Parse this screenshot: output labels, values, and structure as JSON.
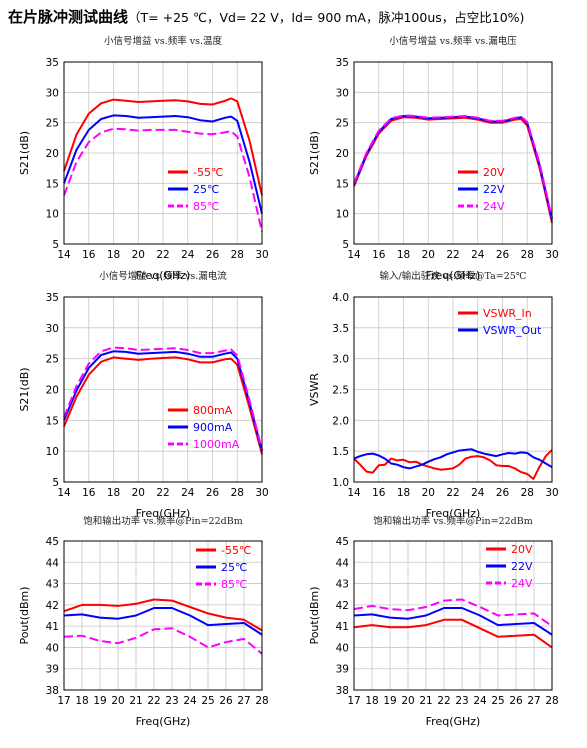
{
  "header": {
    "title": "在片脉冲测试曲线",
    "conditions": "（T= +25 ℃，Vd= 22 V，Id= 900 mA，脉冲100us，占空比10%)"
  },
  "chart_data": [
    {
      "type": "line",
      "title": "小信号增益 vs.频率 vs.温度",
      "xlabel": "Freq(GHz)",
      "ylabel": "S21(dB)",
      "xlim": [
        14,
        30
      ],
      "ylim": [
        5,
        35
      ],
      "xticks": [
        14,
        16,
        18,
        20,
        22,
        24,
        26,
        28,
        30
      ],
      "yticks": [
        5,
        10,
        15,
        20,
        25,
        30,
        35
      ],
      "grid": true,
      "legend_position": "bottom-center",
      "series": [
        {
          "name": "-55℃",
          "color": "#ff0000",
          "dash": "solid",
          "x": [
            14,
            15,
            16,
            17,
            18,
            19,
            20,
            21,
            22,
            23,
            24,
            25,
            26,
            27,
            27.5,
            28,
            29,
            30
          ],
          "y": [
            17,
            23,
            26.5,
            28.2,
            28.8,
            28.6,
            28.4,
            28.5,
            28.6,
            28.7,
            28.5,
            28.1,
            28.0,
            28.6,
            29.0,
            28.5,
            22,
            13
          ]
        },
        {
          "name": "25℃",
          "color": "#0000ff",
          "dash": "solid",
          "x": [
            14,
            15,
            16,
            17,
            18,
            19,
            20,
            21,
            22,
            23,
            24,
            25,
            26,
            27,
            27.5,
            28,
            29,
            30
          ],
          "y": [
            15,
            20.5,
            23.8,
            25.6,
            26.2,
            26.1,
            25.8,
            25.9,
            26.0,
            26.1,
            25.9,
            25.4,
            25.2,
            25.8,
            26.0,
            25.3,
            18.5,
            10
          ]
        },
        {
          "name": "85℃",
          "color": "#ff00ff",
          "dash": "dash",
          "x": [
            14,
            15,
            16,
            17,
            18,
            19,
            20,
            21,
            22,
            23,
            24,
            25,
            26,
            27,
            27.5,
            28,
            29,
            30
          ],
          "y": [
            13,
            18.5,
            21.8,
            23.4,
            24.0,
            23.9,
            23.7,
            23.8,
            23.8,
            23.8,
            23.5,
            23.2,
            23.1,
            23.4,
            23.6,
            22.7,
            16,
            7
          ]
        }
      ]
    },
    {
      "type": "line",
      "title": "小信号增益 vs.频率 vs.漏电压",
      "xlabel": "Freq(GHz)",
      "ylabel": "S21(dB)",
      "xlim": [
        14,
        30
      ],
      "ylim": [
        5,
        35
      ],
      "xticks": [
        14,
        16,
        18,
        20,
        22,
        24,
        26,
        28,
        30
      ],
      "yticks": [
        5,
        10,
        15,
        20,
        25,
        30,
        35
      ],
      "grid": true,
      "legend_position": "bottom-center",
      "series": [
        {
          "name": "20V",
          "color": "#ff0000",
          "dash": "solid",
          "x": [
            14,
            15,
            16,
            17,
            18,
            19,
            20,
            21,
            22,
            23,
            24,
            25,
            26,
            27,
            27.5,
            28,
            29,
            30
          ],
          "y": [
            14.5,
            19.5,
            23.2,
            25.3,
            25.9,
            25.8,
            25.5,
            25.6,
            25.7,
            25.8,
            25.5,
            25.0,
            25.0,
            25.5,
            25.6,
            24.5,
            17.5,
            8.5
          ]
        },
        {
          "name": "22V",
          "color": "#0000ff",
          "dash": "solid",
          "x": [
            14,
            15,
            16,
            17,
            18,
            19,
            20,
            21,
            22,
            23,
            24,
            25,
            26,
            27,
            27.5,
            28,
            29,
            30
          ],
          "y": [
            14.8,
            19.8,
            23.5,
            25.6,
            26.1,
            26.0,
            25.7,
            25.8,
            25.9,
            26.0,
            25.7,
            25.2,
            25.2,
            25.7,
            25.9,
            24.9,
            18,
            9
          ]
        },
        {
          "name": "24V",
          "color": "#ff00ff",
          "dash": "dash",
          "x": [
            14,
            15,
            16,
            17,
            18,
            19,
            20,
            21,
            22,
            23,
            24,
            25,
            26,
            27,
            27.5,
            28,
            29,
            30
          ],
          "y": [
            15,
            20,
            23.7,
            25.7,
            26.2,
            26.1,
            25.8,
            25.9,
            26.0,
            26.1,
            25.8,
            25.3,
            25.3,
            25.8,
            26.0,
            25.1,
            18.3,
            9.3
          ]
        }
      ]
    },
    {
      "type": "line",
      "title": "小信号增益 vs.频率 vs.漏电流",
      "xlabel": "Freq(GHz)",
      "ylabel": "S21(dB)",
      "xlim": [
        14,
        30
      ],
      "ylim": [
        5,
        35
      ],
      "xticks": [
        14,
        16,
        18,
        20,
        22,
        24,
        26,
        28,
        30
      ],
      "yticks": [
        5,
        10,
        15,
        20,
        25,
        30,
        35
      ],
      "grid": true,
      "legend_position": "bottom-center",
      "series": [
        {
          "name": "800mA",
          "color": "#ff0000",
          "dash": "solid",
          "x": [
            14,
            15,
            16,
            17,
            18,
            19,
            20,
            21,
            22,
            23,
            24,
            25,
            26,
            27,
            27.5,
            28,
            29,
            30
          ],
          "y": [
            14,
            18.8,
            22.4,
            24.5,
            25.2,
            25.0,
            24.8,
            25.0,
            25.1,
            25.2,
            24.9,
            24.4,
            24.4,
            24.9,
            25.0,
            24.0,
            17,
            9.5
          ]
        },
        {
          "name": "900mA",
          "color": "#0000ff",
          "dash": "solid",
          "x": [
            14,
            15,
            16,
            17,
            18,
            19,
            20,
            21,
            22,
            23,
            24,
            25,
            26,
            27,
            27.5,
            28,
            29,
            30
          ],
          "y": [
            15,
            19.8,
            23.5,
            25.6,
            26.2,
            26.1,
            25.8,
            25.9,
            26.0,
            26.1,
            25.8,
            25.3,
            25.3,
            25.8,
            26.0,
            25.0,
            17.8,
            10
          ]
        },
        {
          "name": "1000mA",
          "color": "#ff00ff",
          "dash": "dash",
          "x": [
            14,
            15,
            16,
            17,
            18,
            19,
            20,
            21,
            22,
            23,
            24,
            25,
            26,
            27,
            27.5,
            28,
            29,
            30
          ],
          "y": [
            15.5,
            20.5,
            24.2,
            26.2,
            26.8,
            26.7,
            26.4,
            26.5,
            26.6,
            26.7,
            26.4,
            25.9,
            25.9,
            26.3,
            26.5,
            25.5,
            18.2,
            10.2
          ]
        }
      ]
    },
    {
      "type": "line",
      "title": "输入/输出驻波 vs.频率@Ta=25℃",
      "xlabel": "Freq(GHz)",
      "ylabel": "VSWR",
      "xlim": [
        14,
        30
      ],
      "ylim": [
        1.0,
        4.0
      ],
      "xticks": [
        14,
        16,
        18,
        20,
        22,
        24,
        26,
        28,
        30
      ],
      "yticks": [
        1.0,
        1.5,
        2.0,
        2.5,
        3.0,
        3.5,
        4.0
      ],
      "grid": true,
      "legend_position": "top-right",
      "series": [
        {
          "name": "VSWR_In",
          "color": "#ff0000",
          "dash": "solid",
          "x": [
            14,
            14.5,
            15,
            15.5,
            16,
            16.5,
            17,
            17.5,
            18,
            18.5,
            19,
            19.5,
            20,
            20.5,
            21,
            21.5,
            22,
            22.5,
            23,
            23.5,
            24,
            24.5,
            25,
            25.5,
            26,
            26.5,
            27,
            27.5,
            28,
            28.5,
            29,
            29.5,
            30
          ],
          "y": [
            1.38,
            1.28,
            1.17,
            1.15,
            1.27,
            1.28,
            1.38,
            1.35,
            1.36,
            1.32,
            1.33,
            1.28,
            1.25,
            1.22,
            1.2,
            1.21,
            1.22,
            1.28,
            1.38,
            1.41,
            1.42,
            1.4,
            1.35,
            1.27,
            1.26,
            1.26,
            1.22,
            1.16,
            1.13,
            1.05,
            1.25,
            1.42,
            1.52
          ]
        },
        {
          "name": "VSWR_Out",
          "color": "#0000ff",
          "dash": "solid",
          "x": [
            14,
            14.5,
            15,
            15.5,
            16,
            16.5,
            17,
            17.5,
            18,
            18.5,
            19,
            19.5,
            20,
            20.5,
            21,
            21.5,
            22,
            22.5,
            23,
            23.5,
            24,
            24.5,
            25,
            25.5,
            26,
            26.5,
            27,
            27.5,
            28,
            28.5,
            29,
            29.5,
            30
          ],
          "y": [
            1.38,
            1.42,
            1.45,
            1.46,
            1.43,
            1.38,
            1.3,
            1.28,
            1.24,
            1.22,
            1.25,
            1.28,
            1.33,
            1.37,
            1.4,
            1.45,
            1.48,
            1.51,
            1.52,
            1.53,
            1.49,
            1.46,
            1.44,
            1.42,
            1.45,
            1.47,
            1.46,
            1.48,
            1.47,
            1.4,
            1.36,
            1.3,
            1.24
          ]
        }
      ]
    },
    {
      "type": "line",
      "title": "饱和输出功率 vs.频率@Pin=22dBm",
      "xlabel": "Freq(GHz)",
      "ylabel": "Pout(dBm)",
      "xlim": [
        17,
        28
      ],
      "ylim": [
        38,
        45
      ],
      "xticks": [
        17,
        18,
        19,
        20,
        21,
        22,
        23,
        24,
        25,
        26,
        27,
        28
      ],
      "yticks": [
        38,
        39,
        40,
        41,
        42,
        43,
        44,
        45
      ],
      "grid": true,
      "legend_position": "top-right",
      "series": [
        {
          "name": "-55℃",
          "color": "#ff0000",
          "dash": "solid",
          "x": [
            17,
            18,
            19,
            20,
            21,
            22,
            23,
            24,
            25,
            26,
            27,
            28
          ],
          "y": [
            41.7,
            42.0,
            42.0,
            41.95,
            42.05,
            42.25,
            42.2,
            41.9,
            41.6,
            41.4,
            41.3,
            40.8
          ]
        },
        {
          "name": "25℃",
          "color": "#0000ff",
          "dash": "solid",
          "x": [
            17,
            18,
            19,
            20,
            21,
            22,
            23,
            24,
            25,
            26,
            27,
            28
          ],
          "y": [
            41.5,
            41.55,
            41.4,
            41.35,
            41.5,
            41.85,
            41.85,
            41.5,
            41.05,
            41.1,
            41.15,
            40.6
          ]
        },
        {
          "name": "85℃",
          "color": "#ff00ff",
          "dash": "dash",
          "x": [
            17,
            18,
            19,
            20,
            21,
            22,
            23,
            24,
            25,
            26,
            27,
            28
          ],
          "y": [
            40.5,
            40.55,
            40.3,
            40.2,
            40.45,
            40.85,
            40.9,
            40.5,
            40.0,
            40.25,
            40.4,
            39.7
          ]
        }
      ]
    },
    {
      "type": "line",
      "title": "饱和输出功率 vs.频率@Pin=22dBm",
      "xlabel": "Freq(GHz)",
      "ylabel": "Pout(dBm)",
      "xlim": [
        17,
        28
      ],
      "ylim": [
        38,
        45
      ],
      "xticks": [
        17,
        18,
        19,
        20,
        21,
        22,
        23,
        24,
        25,
        26,
        27,
        28
      ],
      "yticks": [
        38,
        39,
        40,
        41,
        42,
        43,
        44,
        45
      ],
      "grid": true,
      "legend_position": "top-right",
      "series": [
        {
          "name": "20V",
          "color": "#ff0000",
          "dash": "solid",
          "x": [
            17,
            18,
            19,
            20,
            21,
            22,
            23,
            24,
            25,
            26,
            27,
            28
          ],
          "y": [
            40.95,
            41.05,
            40.95,
            40.95,
            41.05,
            41.3,
            41.3,
            40.9,
            40.5,
            40.55,
            40.6,
            40.0
          ]
        },
        {
          "name": "22V",
          "color": "#0000ff",
          "dash": "solid",
          "x": [
            17,
            18,
            19,
            20,
            21,
            22,
            23,
            24,
            25,
            26,
            27,
            28
          ],
          "y": [
            41.5,
            41.55,
            41.4,
            41.35,
            41.5,
            41.85,
            41.85,
            41.5,
            41.05,
            41.1,
            41.15,
            40.6
          ]
        },
        {
          "name": "24V",
          "color": "#ff00ff",
          "dash": "dash",
          "x": [
            17,
            18,
            19,
            20,
            21,
            22,
            23,
            24,
            25,
            26,
            27,
            28
          ],
          "y": [
            41.8,
            41.95,
            41.8,
            41.75,
            41.9,
            42.2,
            42.25,
            41.9,
            41.5,
            41.55,
            41.6,
            41.0
          ]
        }
      ]
    }
  ]
}
